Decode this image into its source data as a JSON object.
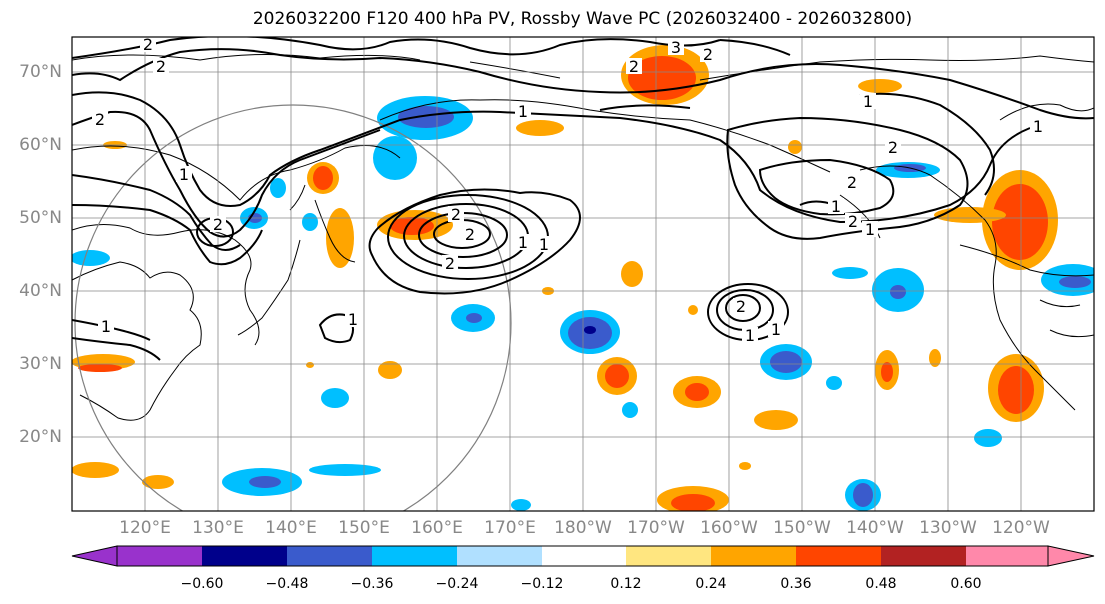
{
  "title": "2026032200 F120 400 hPa PV, Rossby Wave PC (2026032400 - 2026032800)",
  "lat_labels": [
    "70°N",
    "60°N",
    "50°N",
    "40°N",
    "30°N",
    "20°N"
  ],
  "lon_labels": [
    "120°E",
    "130°E",
    "140°E",
    "150°E",
    "160°E",
    "170°E",
    "180°W",
    "170°W",
    "160°W",
    "150°W",
    "140°W",
    "130°W",
    "120°W"
  ],
  "colorbar": {
    "colors": [
      "#9932cc",
      "#00008b",
      "#3a5bcc",
      "#00bfff",
      "#b0e0ff",
      "#ffffff",
      "#ffe680",
      "#ffa500",
      "#ff4500",
      "#b22222",
      "#ff88aa"
    ],
    "tick_labels": [
      "−0.60",
      "−0.48",
      "−0.36",
      "−0.24",
      "−0.12",
      "0.12",
      "0.24",
      "0.36",
      "0.48",
      "0.60"
    ]
  },
  "contour_labels": {
    "c1": "2",
    "c2": "2",
    "c3": "2",
    "c4": "2",
    "c5": "2",
    "c6": "3",
    "c7": "2",
    "c8": "1",
    "c9": "1",
    "c10": "1",
    "c11": "1",
    "c12": "2",
    "c13": "2",
    "c14": "2",
    "c15": "2",
    "c16": "1",
    "c17": "1",
    "c18": "1",
    "c19": "2",
    "c20": "1",
    "c21": "1",
    "c22": "2",
    "c23": "1",
    "c24": "2",
    "c25": "1",
    "c26": "1"
  }
}
